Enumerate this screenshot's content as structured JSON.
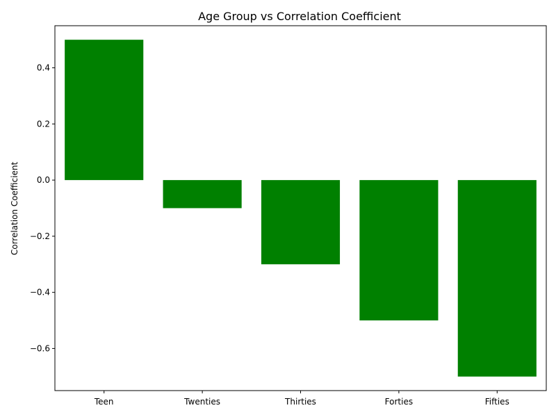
{
  "chart_data": {
    "type": "bar",
    "title": "Age Group vs Correlation Coefficient",
    "xlabel": "",
    "ylabel": "Correlation Coefficient",
    "categories": [
      "Teen",
      "Twenties",
      "Thirties",
      "Forties",
      "Fifties"
    ],
    "values": [
      0.5,
      -0.1,
      -0.3,
      -0.5,
      -0.7
    ],
    "ylim": [
      -0.75,
      0.55
    ],
    "yticks": [
      -0.6,
      -0.4,
      -0.2,
      0.0,
      0.2,
      0.4
    ],
    "ytick_labels": [
      "−0.6",
      "−0.4",
      "−0.2",
      "0.0",
      "0.2",
      "0.4"
    ],
    "bar_color": "#008000",
    "grid": false,
    "legend": "none"
  }
}
